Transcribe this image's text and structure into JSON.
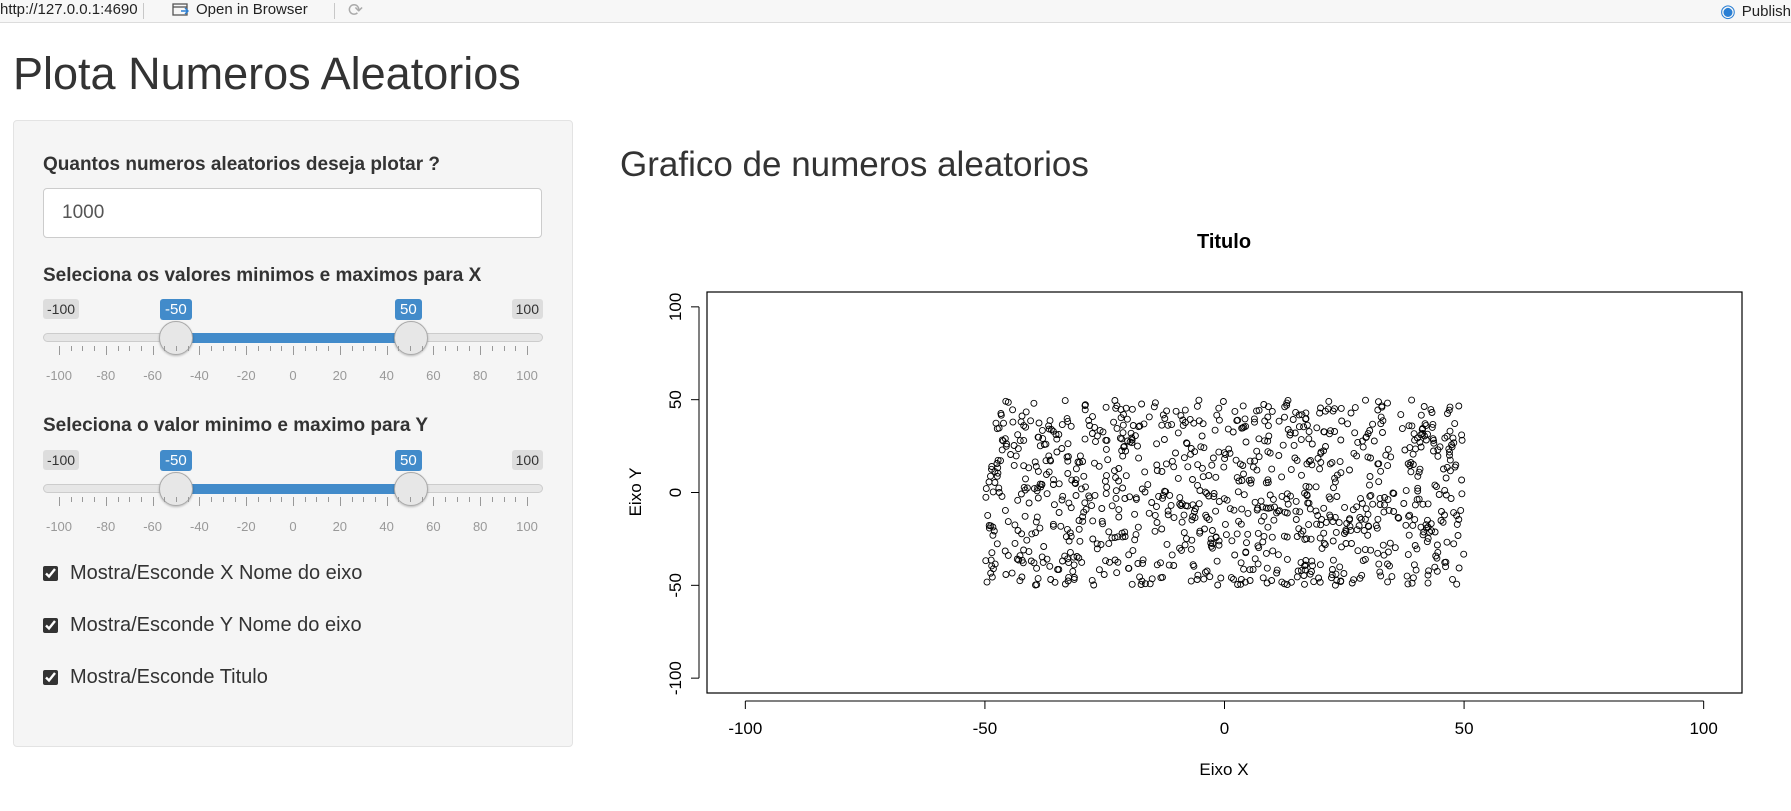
{
  "topbar": {
    "url": "http://127.0.0.1:4690",
    "open_in_browser": "Open in Browser",
    "publish": "Publish"
  },
  "app_title": "Plota Numeros Aleatorios",
  "sidebar": {
    "count_label": "Quantos numeros aleatorios deseja plotar ?",
    "count_value": "1000",
    "x_slider": {
      "label": "Seleciona os valores minimos e maximos para X",
      "min": -100,
      "max": 100,
      "low": -50,
      "high": 50,
      "min_label": "-100",
      "max_label": "100",
      "low_label": "-50",
      "high_label": "50"
    },
    "y_slider": {
      "label": "Seleciona o valor minimo e maximo para Y",
      "min": -100,
      "max": 100,
      "low": -50,
      "high": 50,
      "min_label": "-100",
      "max_label": "100",
      "low_label": "-50",
      "high_label": "50"
    },
    "tick_labels": [
      "-100",
      "-80",
      "-60",
      "-40",
      "-20",
      "0",
      "20",
      "40",
      "60",
      "80",
      "100"
    ],
    "checkboxes": [
      {
        "label": "Mostra/Esconde X Nome do eixo",
        "checked": true
      },
      {
        "label": "Mostra/Esconde Y Nome do eixo",
        "checked": true
      },
      {
        "label": "Mostra/Esconde Titulo",
        "checked": true
      }
    ]
  },
  "main": {
    "heading": "Grafico de numeros aleatorios"
  },
  "chart_data": {
    "type": "scatter",
    "title": "Titulo",
    "xlabel": "Eixo X",
    "ylabel": "Eixo Y",
    "xlim": [
      -108,
      108
    ],
    "ylim": [
      -108,
      108
    ],
    "xticks": [
      "-100",
      "-50",
      "0",
      "50",
      "100"
    ],
    "yticks": [
      "-100",
      "-50",
      "0",
      "50",
      "100"
    ],
    "n_points": 1000,
    "x_range": [
      -50,
      50
    ],
    "y_range": [
      -50,
      50
    ],
    "marker": "open-circle",
    "grid": false
  }
}
